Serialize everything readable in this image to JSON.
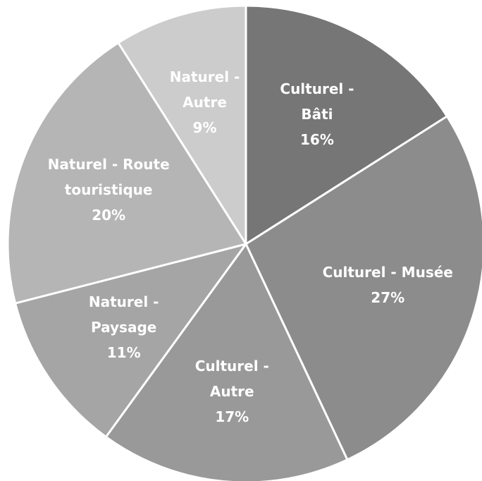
{
  "chart_data": {
    "type": "pie",
    "categories": [
      "Culturel - Bâti",
      "Culturel - Musée",
      "Culturel - Autre",
      "Naturel - Paysage",
      "Naturel - Route touristique",
      "Naturel - Autre"
    ],
    "values": [
      16,
      27,
      17,
      11,
      20,
      9
    ],
    "value_labels": [
      "16%",
      "27%",
      "17%",
      "11%",
      "20%",
      "9%"
    ],
    "colors": [
      "#767676",
      "#8c8c8c",
      "#999999",
      "#a5a5a5",
      "#b5b5b5",
      "#cccccc"
    ]
  }
}
